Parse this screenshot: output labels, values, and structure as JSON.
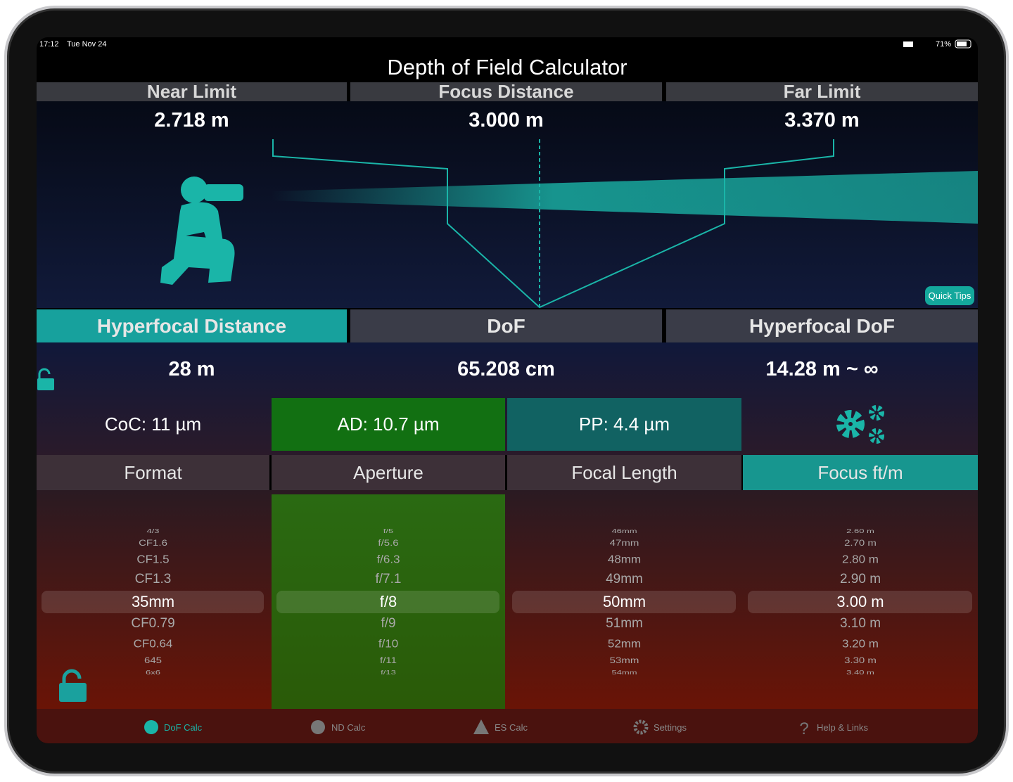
{
  "status_bar": {
    "time": "17:12",
    "date": "Tue Nov 24",
    "battery": "71%"
  },
  "header": {
    "title": "Depth of Field Calculator"
  },
  "limits": [
    {
      "label": "Near Limit",
      "value": "2.718 m"
    },
    {
      "label": "Focus Distance",
      "value": "3.000 m"
    },
    {
      "label": "Far Limit",
      "value": "3.370 m"
    }
  ],
  "quick_tips": "Quick Tips",
  "results": [
    {
      "label": "Hyperfocal Distance",
      "value": "28 m"
    },
    {
      "label": "DoF",
      "value": "65.208 cm"
    },
    {
      "label": "Hyperfocal DoF",
      "value": "14.28 m ~ ∞"
    }
  ],
  "metrics": [
    "CoC: 11 µm",
    "AD: 10.7 µm",
    "PP: 4.4 µm"
  ],
  "pickers": [
    {
      "label": "Format",
      "items": [
        "4/3",
        "CF1.6",
        "CF1.5",
        "CF1.3",
        "35mm",
        "CF0.79",
        "CF0.64",
        "645",
        "6x6"
      ]
    },
    {
      "label": "Aperture",
      "items": [
        "f/5",
        "f/5.6",
        "f/6.3",
        "f/7.1",
        "f/8",
        "f/9",
        "f/10",
        "f/11",
        "f/13"
      ]
    },
    {
      "label": "Focal Length",
      "items": [
        "46mm",
        "47mm",
        "48mm",
        "49mm",
        "50mm",
        "51mm",
        "52mm",
        "53mm",
        "54mm"
      ]
    },
    {
      "label": "Focus ft/m",
      "items": [
        "2.60 m",
        "2.70 m",
        "2.80 m",
        "2.90 m",
        "3.00 m",
        "3.10 m",
        "3.20 m",
        "3.30 m",
        "3.40 m"
      ]
    }
  ],
  "tab_bar": [
    "DoF Calc",
    "ND Calc",
    "ES Calc",
    "Settings",
    "Help & Links"
  ]
}
